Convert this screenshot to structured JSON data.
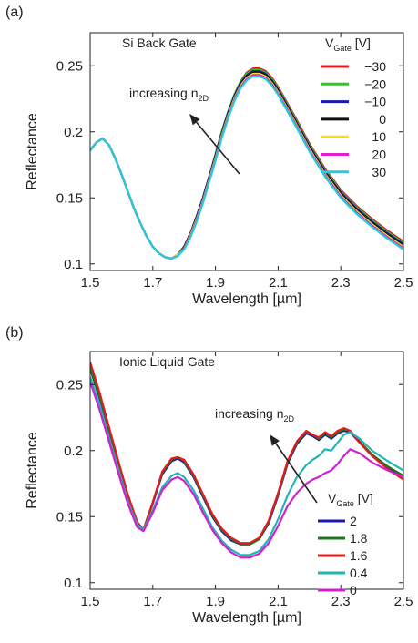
{
  "chart_data": [
    {
      "type": "line",
      "panel_label": "(a)",
      "annotation": "Si Back Gate",
      "arrow_text": "increasing n",
      "arrow_sub": "2D",
      "legend_title": "V",
      "legend_title_sub": "Gate",
      "legend_unit": " [V]",
      "xlabel": "Wavelength [µm]",
      "ylabel": "Reflectance",
      "xlim": [
        1.5,
        2.5
      ],
      "ylim": [
        0.095,
        0.275
      ],
      "xticks": [
        "1.5",
        "1.7",
        "1.9",
        "2.1",
        "2.3",
        "2.5"
      ],
      "xtick_values": [
        1.5,
        1.7,
        1.9,
        2.1,
        2.3,
        2.5
      ],
      "yticks": [
        "0.1",
        "0.15",
        "0.2",
        "0.25"
      ],
      "ytick_values": [
        0.1,
        0.15,
        0.2,
        0.25
      ],
      "x": [
        1.5,
        1.52,
        1.54,
        1.56,
        1.58,
        1.6,
        1.62,
        1.64,
        1.66,
        1.68,
        1.7,
        1.72,
        1.74,
        1.76,
        1.78,
        1.8,
        1.82,
        1.84,
        1.86,
        1.88,
        1.9,
        1.92,
        1.94,
        1.96,
        1.98,
        2.0,
        2.02,
        2.04,
        2.06,
        2.08,
        2.1,
        2.15,
        2.2,
        2.25,
        2.3,
        2.35,
        2.4,
        2.45,
        2.5
      ],
      "series": [
        {
          "name": "−30",
          "color": "#e41a1c",
          "values": [
            0.186,
            0.192,
            0.195,
            0.19,
            0.18,
            0.168,
            0.155,
            0.142,
            0.131,
            0.121,
            0.113,
            0.108,
            0.105,
            0.104,
            0.107,
            0.113,
            0.123,
            0.136,
            0.15,
            0.166,
            0.183,
            0.2,
            0.215,
            0.228,
            0.238,
            0.245,
            0.248,
            0.248,
            0.246,
            0.241,
            0.234,
            0.213,
            0.191,
            0.172,
            0.156,
            0.144,
            0.134,
            0.125,
            0.117
          ]
        },
        {
          "name": "−20",
          "color": "#22cc22",
          "values": [
            0.186,
            0.192,
            0.195,
            0.19,
            0.18,
            0.168,
            0.155,
            0.142,
            0.131,
            0.121,
            0.113,
            0.108,
            0.105,
            0.104,
            0.107,
            0.113,
            0.123,
            0.136,
            0.15,
            0.166,
            0.183,
            0.2,
            0.215,
            0.228,
            0.238,
            0.244,
            0.247,
            0.247,
            0.245,
            0.24,
            0.233,
            0.212,
            0.19,
            0.171,
            0.155,
            0.143,
            0.133,
            0.124,
            0.116
          ]
        },
        {
          "name": "−10",
          "color": "#1a1aaa",
          "values": [
            0.186,
            0.192,
            0.195,
            0.19,
            0.18,
            0.168,
            0.155,
            0.142,
            0.131,
            0.121,
            0.113,
            0.108,
            0.105,
            0.104,
            0.107,
            0.113,
            0.123,
            0.136,
            0.15,
            0.166,
            0.182,
            0.199,
            0.214,
            0.227,
            0.237,
            0.243,
            0.246,
            0.246,
            0.244,
            0.239,
            0.232,
            0.211,
            0.189,
            0.17,
            0.154,
            0.142,
            0.132,
            0.123,
            0.115
          ]
        },
        {
          "name": "0",
          "color": "#111111",
          "values": [
            0.186,
            0.192,
            0.195,
            0.19,
            0.18,
            0.168,
            0.155,
            0.142,
            0.131,
            0.121,
            0.113,
            0.108,
            0.105,
            0.104,
            0.107,
            0.113,
            0.123,
            0.135,
            0.149,
            0.165,
            0.181,
            0.198,
            0.213,
            0.226,
            0.236,
            0.242,
            0.245,
            0.245,
            0.243,
            0.238,
            0.231,
            0.21,
            0.188,
            0.169,
            0.153,
            0.141,
            0.131,
            0.122,
            0.114
          ]
        },
        {
          "name": "10",
          "color": "#f2e01a",
          "values": [
            0.186,
            0.192,
            0.195,
            0.19,
            0.18,
            0.168,
            0.155,
            0.142,
            0.131,
            0.121,
            0.113,
            0.108,
            0.105,
            0.104,
            0.107,
            0.112,
            0.122,
            0.134,
            0.148,
            0.164,
            0.18,
            0.197,
            0.212,
            0.225,
            0.235,
            0.241,
            0.244,
            0.244,
            0.242,
            0.237,
            0.23,
            0.209,
            0.187,
            0.168,
            0.152,
            0.14,
            0.13,
            0.121,
            0.113
          ]
        },
        {
          "name": "20",
          "color": "#e020d0",
          "values": [
            0.186,
            0.192,
            0.195,
            0.19,
            0.18,
            0.168,
            0.155,
            0.142,
            0.131,
            0.121,
            0.113,
            0.108,
            0.105,
            0.104,
            0.106,
            0.112,
            0.121,
            0.133,
            0.147,
            0.163,
            0.179,
            0.196,
            0.211,
            0.224,
            0.234,
            0.24,
            0.243,
            0.243,
            0.241,
            0.236,
            0.229,
            0.208,
            0.186,
            0.167,
            0.151,
            0.139,
            0.129,
            0.12,
            0.112
          ]
        },
        {
          "name": "30",
          "color": "#22ccdd",
          "values": [
            0.186,
            0.192,
            0.195,
            0.19,
            0.18,
            0.168,
            0.155,
            0.142,
            0.131,
            0.121,
            0.113,
            0.108,
            0.105,
            0.104,
            0.106,
            0.111,
            0.12,
            0.132,
            0.146,
            0.162,
            0.178,
            0.195,
            0.21,
            0.223,
            0.233,
            0.239,
            0.242,
            0.242,
            0.24,
            0.235,
            0.228,
            0.207,
            0.185,
            0.166,
            0.15,
            0.138,
            0.128,
            0.119,
            0.111
          ]
        }
      ]
    },
    {
      "type": "line",
      "panel_label": "(b)",
      "annotation": "Ionic Liquid Gate",
      "arrow_text": "increasing n",
      "arrow_sub": "2D",
      "legend_title": "V",
      "legend_title_sub": "Gate",
      "legend_unit": " [V]",
      "xlabel": "Wavelength [µm]",
      "ylabel": "Reflectance",
      "xlim": [
        1.5,
        2.5
      ],
      "ylim": [
        0.095,
        0.275
      ],
      "xticks": [
        "1.5",
        "1.7",
        "1.9",
        "2.1",
        "2.3",
        "2.5"
      ],
      "xtick_values": [
        1.5,
        1.7,
        1.9,
        2.1,
        2.3,
        2.5
      ],
      "yticks": [
        "0.1",
        "0.15",
        "0.2",
        "0.25"
      ],
      "ytick_values": [
        0.1,
        0.15,
        0.2,
        0.25
      ],
      "x": [
        1.5,
        1.53,
        1.56,
        1.59,
        1.62,
        1.65,
        1.67,
        1.7,
        1.73,
        1.76,
        1.78,
        1.8,
        1.83,
        1.86,
        1.89,
        1.92,
        1.95,
        1.98,
        2.01,
        2.04,
        2.07,
        2.1,
        2.13,
        2.16,
        2.19,
        2.21,
        2.23,
        2.25,
        2.27,
        2.29,
        2.31,
        2.33,
        2.36,
        2.4,
        2.45,
        2.5
      ],
      "series": [
        {
          "name": "2",
          "color": "#1a1aaa",
          "values": [
            0.262,
            0.24,
            0.215,
            0.19,
            0.165,
            0.145,
            0.14,
            0.16,
            0.182,
            0.192,
            0.194,
            0.191,
            0.18,
            0.165,
            0.15,
            0.139,
            0.132,
            0.129,
            0.129,
            0.133,
            0.145,
            0.166,
            0.19,
            0.205,
            0.213,
            0.211,
            0.208,
            0.212,
            0.209,
            0.213,
            0.215,
            0.214,
            0.206,
            0.196,
            0.187,
            0.18
          ]
        },
        {
          "name": "1.8",
          "color": "#1a7a1a",
          "values": [
            0.263,
            0.241,
            0.216,
            0.191,
            0.166,
            0.146,
            0.14,
            0.161,
            0.183,
            0.193,
            0.195,
            0.192,
            0.181,
            0.166,
            0.151,
            0.14,
            0.133,
            0.129,
            0.129,
            0.133,
            0.146,
            0.167,
            0.191,
            0.206,
            0.214,
            0.212,
            0.209,
            0.213,
            0.21,
            0.214,
            0.216,
            0.215,
            0.207,
            0.197,
            0.188,
            0.181
          ]
        },
        {
          "name": "1.6",
          "color": "#e41a1c",
          "values": [
            0.267,
            0.244,
            0.218,
            0.192,
            0.167,
            0.146,
            0.14,
            0.161,
            0.184,
            0.194,
            0.195,
            0.193,
            0.182,
            0.167,
            0.152,
            0.141,
            0.134,
            0.13,
            0.13,
            0.134,
            0.147,
            0.168,
            0.192,
            0.207,
            0.215,
            0.212,
            0.21,
            0.214,
            0.211,
            0.215,
            0.217,
            0.215,
            0.206,
            0.196,
            0.186,
            0.178
          ]
        },
        {
          "name": "0.4",
          "color": "#22b5b5",
          "values": [
            0.256,
            0.235,
            0.21,
            0.186,
            0.162,
            0.144,
            0.14,
            0.155,
            0.172,
            0.181,
            0.183,
            0.18,
            0.17,
            0.156,
            0.142,
            0.132,
            0.125,
            0.121,
            0.121,
            0.124,
            0.133,
            0.148,
            0.166,
            0.18,
            0.189,
            0.193,
            0.196,
            0.201,
            0.2,
            0.206,
            0.212,
            0.214,
            0.209,
            0.2,
            0.192,
            0.185
          ]
        },
        {
          "name": "0",
          "color": "#d020d0",
          "values": [
            0.252,
            0.231,
            0.207,
            0.183,
            0.16,
            0.142,
            0.139,
            0.153,
            0.17,
            0.178,
            0.18,
            0.177,
            0.167,
            0.153,
            0.14,
            0.13,
            0.123,
            0.119,
            0.119,
            0.122,
            0.13,
            0.143,
            0.158,
            0.168,
            0.175,
            0.178,
            0.18,
            0.183,
            0.185,
            0.19,
            0.196,
            0.201,
            0.198,
            0.191,
            0.185,
            0.18
          ]
        }
      ]
    }
  ]
}
